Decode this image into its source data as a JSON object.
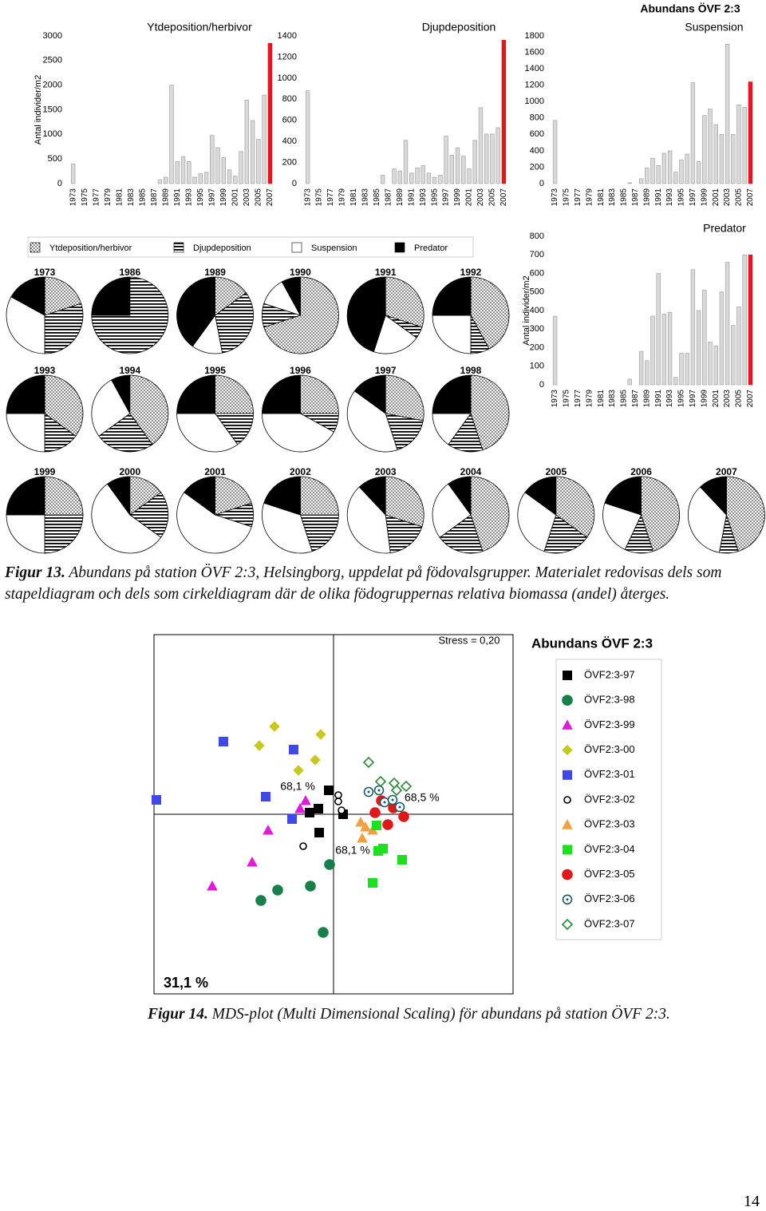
{
  "chart_data": [
    {
      "type": "bar",
      "title": "Ytdeposition/herbivor",
      "ylabel": "Antal individer/m2",
      "categories": [
        "1973",
        null,
        "1975",
        null,
        "1977",
        null,
        "1979",
        null,
        "1981",
        null,
        "1983",
        null,
        "1985",
        null,
        "1987",
        null,
        "1989",
        null,
        "1991",
        null,
        "1993",
        null,
        "1995",
        null,
        "1997",
        null,
        "1999",
        null,
        "2001",
        null,
        "2003",
        null,
        "2005",
        null,
        "2007"
      ],
      "values": [
        400,
        null,
        null,
        null,
        null,
        null,
        null,
        null,
        null,
        null,
        null,
        null,
        null,
        null,
        null,
        80,
        130,
        2000,
        450,
        550,
        450,
        130,
        200,
        230,
        980,
        730,
        530,
        280,
        150,
        650,
        1700,
        1280,
        900,
        1800,
        2850
      ],
      "color": "#d9d9d9",
      "last_bar_color": "#e3161c",
      "ylim": [
        0,
        3000
      ],
      "yticks": [
        0,
        500,
        1000,
        1500,
        2000,
        2500,
        3000
      ]
    },
    {
      "type": "bar",
      "title": "Djupdeposition",
      "categories": [
        "1973",
        null,
        "1975",
        null,
        "1977",
        null,
        "1979",
        null,
        "1981",
        null,
        "1983",
        null,
        "1985",
        null,
        "1987",
        null,
        "1989",
        null,
        "1991",
        null,
        "1993",
        null,
        "1995",
        null,
        "1997",
        null,
        "1999",
        null,
        "2001",
        null,
        "2003",
        null,
        "2005",
        null,
        "2007"
      ],
      "values": [
        880,
        null,
        null,
        null,
        null,
        null,
        null,
        null,
        null,
        null,
        null,
        null,
        null,
        80,
        null,
        140,
        120,
        410,
        100,
        150,
        170,
        100,
        60,
        80,
        450,
        270,
        340,
        260,
        140,
        410,
        720,
        470,
        470,
        530,
        1360
      ],
      "color": "#d9d9d9",
      "last_bar_color": "#e3161c",
      "ylim": [
        0,
        1400
      ],
      "yticks": [
        0,
        200,
        400,
        600,
        800,
        1000,
        1200,
        1400
      ]
    },
    {
      "type": "bar",
      "supertitle": "Abundans ÖVF 2:3",
      "title": "Suspension",
      "categories": [
        "1973",
        null,
        "1975",
        null,
        "1977",
        null,
        "1979",
        null,
        "1981",
        null,
        "1983",
        null,
        "1985",
        null,
        "1987",
        null,
        "1989",
        null,
        "1991",
        null,
        "1993",
        null,
        "1995",
        null,
        "1997",
        null,
        "1999",
        null,
        "2001",
        null,
        "2003",
        null,
        "2005",
        null,
        "2007"
      ],
      "values": [
        770,
        null,
        null,
        null,
        null,
        null,
        null,
        null,
        null,
        null,
        null,
        null,
        null,
        10,
        null,
        60,
        190,
        310,
        220,
        370,
        400,
        140,
        290,
        360,
        1230,
        270,
        830,
        910,
        720,
        600,
        1700,
        600,
        960,
        930,
        1240
      ],
      "color": "#d9d9d9",
      "last_bar_color": "#e3161c",
      "ylim": [
        0,
        1800
      ],
      "yticks": [
        0,
        200,
        400,
        600,
        800,
        1000,
        1200,
        1400,
        1600,
        1800
      ]
    },
    {
      "type": "bar",
      "title": "Predator",
      "ylabel": "Antal individer/m2",
      "categories": [
        "1973",
        null,
        "1975",
        null,
        "1977",
        null,
        "1979",
        null,
        "1981",
        null,
        "1983",
        null,
        "1985",
        null,
        "1987",
        null,
        "1989",
        null,
        "1991",
        null,
        "1993",
        null,
        "1995",
        null,
        "1997",
        null,
        "1999",
        null,
        "2001",
        null,
        "2003",
        null,
        "2005",
        null,
        "2007"
      ],
      "values": [
        370,
        null,
        null,
        null,
        null,
        null,
        null,
        null,
        null,
        null,
        null,
        null,
        null,
        30,
        null,
        180,
        130,
        370,
        600,
        380,
        390,
        40,
        170,
        170,
        620,
        400,
        510,
        230,
        210,
        500,
        660,
        320,
        420,
        700,
        700
      ],
      "color": "#d9d9d9",
      "last_bar_color": "#e3161c",
      "ylim": [
        0,
        800
      ],
      "yticks": [
        0,
        100,
        200,
        300,
        400,
        500,
        600,
        700,
        800
      ]
    },
    {
      "type": "pie",
      "legend": [
        "Ytdeposition/herbivor",
        "Djupdeposition",
        "Suspension",
        "Predator"
      ],
      "patterns": [
        "dots",
        "stripes",
        "white",
        "black"
      ],
      "pies": [
        {
          "title": "1973",
          "values": [
            20,
            30,
            33,
            17
          ]
        },
        {
          "title": "1986",
          "values": [
            0,
            75,
            0,
            25
          ]
        },
        {
          "title": "1989",
          "values": [
            15,
            32,
            13,
            40
          ]
        },
        {
          "title": "1990",
          "values": [
            70,
            10,
            12,
            8
          ]
        },
        {
          "title": "1991",
          "values": [
            30,
            5,
            20,
            45
          ]
        },
        {
          "title": "1992",
          "values": [
            42,
            8,
            25,
            25
          ]
        },
        {
          "title": "1993",
          "values": [
            35,
            15,
            25,
            25
          ]
        },
        {
          "title": "1994",
          "values": [
            40,
            25,
            27,
            8
          ]
        },
        {
          "title": "1995",
          "values": [
            25,
            15,
            35,
            25
          ]
        },
        {
          "title": "1996",
          "values": [
            25,
            8,
            42,
            25
          ]
        },
        {
          "title": "1997",
          "values": [
            28,
            17,
            40,
            15
          ]
        },
        {
          "title": "1998",
          "values": [
            45,
            15,
            15,
            25
          ]
        },
        {
          "title": "1999",
          "values": [
            25,
            25,
            25,
            25
          ]
        },
        {
          "title": "2000",
          "values": [
            15,
            20,
            55,
            10
          ]
        },
        {
          "title": "2001",
          "values": [
            20,
            10,
            55,
            15
          ]
        },
        {
          "title": "2002",
          "values": [
            25,
            20,
            35,
            20
          ]
        },
        {
          "title": "2003",
          "values": [
            30,
            18,
            40,
            12
          ]
        },
        {
          "title": "2004",
          "values": [
            45,
            20,
            25,
            10
          ]
        },
        {
          "title": "2005",
          "values": [
            35,
            20,
            30,
            15
          ]
        },
        {
          "title": "2006",
          "values": [
            45,
            12,
            23,
            20
          ]
        },
        {
          "title": "2007",
          "values": [
            45,
            8,
            35,
            12
          ]
        }
      ]
    },
    {
      "type": "scatter",
      "title": "Abundans ÖVF 2:3",
      "xlim": [
        -225,
        225
      ],
      "ylim": [
        -225,
        225
      ],
      "annotations": [
        "Stress = 0,20",
        "68,1 %",
        "68,5 %",
        "68,1 %",
        "31,1 %"
      ],
      "series": [
        {
          "name": "ÖVF2:3-97",
          "color": "#000000",
          "marker": "square",
          "filled": true,
          "x": [
            -6,
            -19,
            -30,
            12,
            -18
          ],
          "y": [
            30,
            7,
            2,
            0,
            -23
          ]
        },
        {
          "name": "ÖVF2:3-98",
          "color": "#17804a",
          "marker": "circle",
          "filled": true,
          "x": [
            -5,
            -29,
            -70,
            -91,
            -13
          ],
          "y": [
            -63,
            -90,
            -95,
            -108,
            -148
          ]
        },
        {
          "name": "ÖVF2:3-99",
          "color": "#e31ad9",
          "marker": "triangle",
          "filled": true,
          "x": [
            -35,
            -42,
            -82,
            -102,
            -152
          ],
          "y": [
            17,
            7,
            -20,
            -60,
            -90
          ]
        },
        {
          "name": "ÖVF2:3-00",
          "color": "#c9c81e",
          "marker": "diamond",
          "filled": true,
          "x": [
            -74,
            -16,
            -93,
            -23,
            -44
          ],
          "y": [
            110,
            100,
            86,
            68,
            55
          ]
        },
        {
          "name": "ÖVF2:3-01",
          "color": "#3f48e8",
          "marker": "square",
          "filled": true,
          "x": [
            -138,
            -50,
            -222,
            -85,
            -52
          ],
          "y": [
            91,
            81,
            18,
            22,
            -6
          ]
        },
        {
          "name": "ÖVF2:3-02",
          "color": "#000000",
          "marker": "circle",
          "filled": false,
          "x": [
            6,
            6,
            10,
            -38
          ],
          "y": [
            24,
            16,
            5,
            -40
          ]
        },
        {
          "name": "ÖVF2:3-03",
          "color": "#f0a040",
          "marker": "triangle",
          "filled": true,
          "x": [
            34,
            40,
            36,
            49
          ],
          "y": [
            -10,
            -16,
            -30,
            -20
          ]
        },
        {
          "name": "ÖVF2:3-04",
          "color": "#1ee01e",
          "marker": "square",
          "filled": true,
          "x": [
            54,
            62,
            56,
            86,
            49
          ],
          "y": [
            -14,
            -43,
            -46,
            -57,
            -86
          ]
        },
        {
          "name": "ÖVF2:3-05",
          "color": "#e01818",
          "marker": "circle",
          "filled": true,
          "x": [
            52,
            68,
            75,
            88,
            60
          ],
          "y": [
            2,
            -13,
            8,
            -3,
            17
          ]
        },
        {
          "name": "ÖVF2:3-06",
          "color": "#1a5a6a",
          "marker": "ring-dot",
          "filled": false,
          "x": [
            44,
            57,
            64,
            74,
            83
          ],
          "y": [
            28,
            30,
            15,
            18,
            9
          ]
        },
        {
          "name": "ÖVF2:3-07",
          "color": "#2a8a3a",
          "marker": "diamond",
          "filled": false,
          "x": [
            44,
            59,
            76,
            91,
            79
          ],
          "y": [
            65,
            41,
            39,
            35,
            30
          ]
        }
      ]
    }
  ],
  "captions": [
    {
      "label": "Figur 13.",
      "text": "Abundans på station ÖVF 2:3, Helsingborg, uppdelat på födovalsgrupper. Materialet redovisas dels som stapeldiagram och dels som cirkeldiagram där de olika födogruppernas relativa biomassa (andel) återges."
    },
    {
      "label": "Figur 14.",
      "text": "MDS-plot (Multi Dimensional Scaling) för abundans på station ÖVF 2:3."
    }
  ],
  "page_number": "14"
}
